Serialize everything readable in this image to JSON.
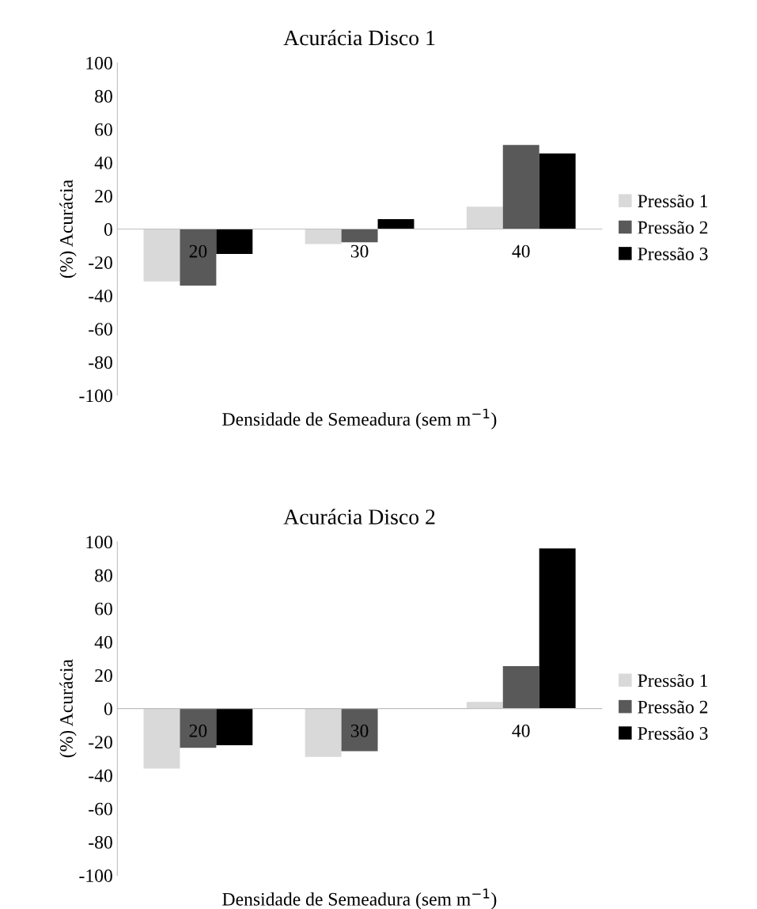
{
  "chart_data": [
    {
      "type": "bar",
      "title": "Acurácia Disco 1",
      "xlabel": "Densidade de Semeadura (sem m$^{−1}$)",
      "ylabel": "(%) Acurácia",
      "categories": [
        "20",
        "30",
        "40"
      ],
      "series": [
        {
          "name": "Pressão 1",
          "color": "#d9d9d9",
          "values": [
            -31.5,
            -9,
            13.5
          ]
        },
        {
          "name": "Pressão 2",
          "color": "#595959",
          "values": [
            -34,
            -8,
            50.5
          ]
        },
        {
          "name": "Pressão 3",
          "color": "#000000",
          "values": [
            -15,
            6,
            45.5
          ]
        }
      ],
      "ylim": [
        -100,
        100
      ],
      "yticks": [
        -100,
        -80,
        -60,
        -40,
        -20,
        0,
        20,
        40,
        60,
        80,
        100
      ],
      "grid": false,
      "legend": "right"
    },
    {
      "type": "bar",
      "title": "Acurácia Disco 2",
      "xlabel": "Densidade de Semeadura (sem m$^{−1}$)",
      "ylabel": "(%) Acurácia",
      "categories": [
        "20",
        "30",
        "40"
      ],
      "series": [
        {
          "name": "Pressão 1",
          "color": "#d9d9d9",
          "values": [
            -36,
            -29,
            4
          ]
        },
        {
          "name": "Pressão 2",
          "color": "#595959",
          "values": [
            -23.5,
            -25.5,
            25.5
          ]
        },
        {
          "name": "Pressão 3",
          "color": "#000000",
          "values": [
            -22,
            0,
            96
          ]
        }
      ],
      "ylim": [
        -100,
        100
      ],
      "yticks": [
        -100,
        -80,
        -60,
        -40,
        -20,
        0,
        20,
        40,
        60,
        80,
        100
      ],
      "grid": false,
      "legend": "right"
    }
  ]
}
